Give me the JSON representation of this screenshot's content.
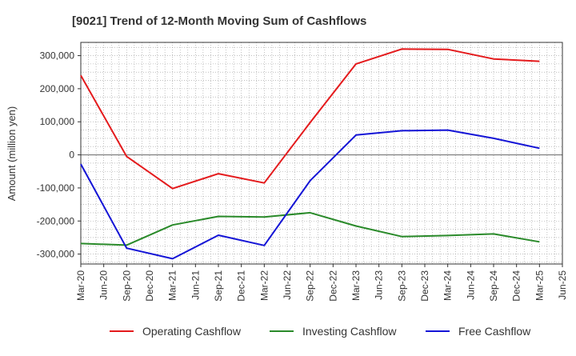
{
  "chart_data": {
    "type": "line",
    "title": "[9021]  Trend of 12-Month Moving Sum of Cashflows",
    "ylabel": "Amount (million yen)",
    "xlabel": "",
    "ylim": [
      -330000,
      340000
    ],
    "yticks": [
      300000,
      200000,
      100000,
      0,
      -100000,
      -200000,
      -300000
    ],
    "ytick_labels": [
      "300,000",
      "200,000",
      "100,000",
      "0",
      "-100,000",
      "-200,000",
      "-300,000"
    ],
    "categories": [
      "Mar-20",
      "Jun-20",
      "Sep-20",
      "Dec-20",
      "Mar-21",
      "Jun-21",
      "Sep-21",
      "Dec-21",
      "Mar-22",
      "Jun-22",
      "Sep-22",
      "Dec-22",
      "Mar-23",
      "Jun-23",
      "Sep-23",
      "Dec-23",
      "Mar-24",
      "Jun-24",
      "Sep-24",
      "Dec-24",
      "Mar-25",
      "Jun-25"
    ],
    "grid": true,
    "legend_position": "bottom",
    "series": [
      {
        "name": "Operating Cashflow",
        "color": "#e41a1c",
        "values": [
          240000,
          null,
          -5000,
          null,
          -102000,
          null,
          -57000,
          null,
          -85000,
          null,
          98000,
          null,
          275000,
          null,
          320000,
          null,
          319000,
          null,
          290000,
          null,
          283000,
          null
        ]
      },
      {
        "name": "Investing Cashflow",
        "color": "#2a8a2a",
        "values": [
          -268000,
          null,
          -273000,
          null,
          -212000,
          null,
          -186000,
          null,
          -188000,
          null,
          -175000,
          null,
          -215000,
          null,
          -247000,
          null,
          -244000,
          null,
          -239000,
          null,
          -263000,
          null
        ]
      },
      {
        "name": "Free Cashflow",
        "color": "#1414d6",
        "values": [
          -28000,
          null,
          -282000,
          null,
          -314000,
          null,
          -243000,
          null,
          -274000,
          null,
          -78000,
          null,
          60000,
          null,
          73000,
          null,
          75000,
          null,
          50000,
          null,
          20000,
          null
        ]
      }
    ]
  }
}
